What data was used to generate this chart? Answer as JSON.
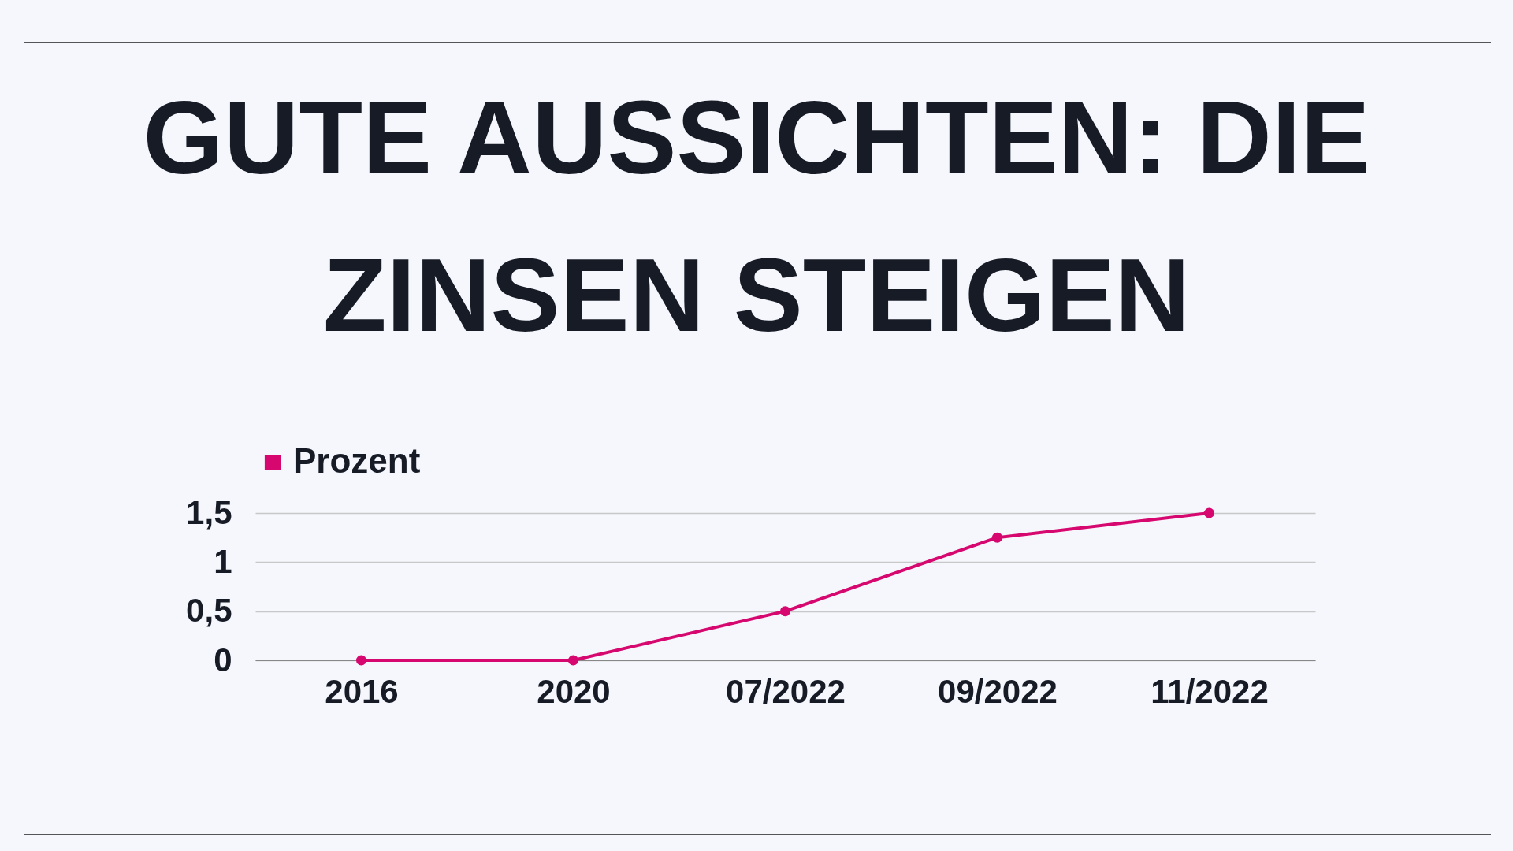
{
  "chart_data": {
    "type": "line",
    "title": "GUTE AUSSICHTEN: DIE ZINSEN STEIGEN",
    "categories": [
      "2016",
      "2020",
      "07/2022",
      "09/2022",
      "11/2022"
    ],
    "series": [
      {
        "name": "Prozent",
        "color": "#d6086f",
        "values": [
          0,
          0,
          0.5,
          1.25,
          1.5
        ]
      }
    ],
    "ylim": [
      0,
      1.5
    ],
    "yticks": [
      0,
      {
        "value": 0.5,
        "label": "0,5"
      },
      1,
      {
        "value": 1.5,
        "label": "1,5"
      }
    ],
    "grid": "y",
    "legend": "top",
    "marker": "circle"
  }
}
